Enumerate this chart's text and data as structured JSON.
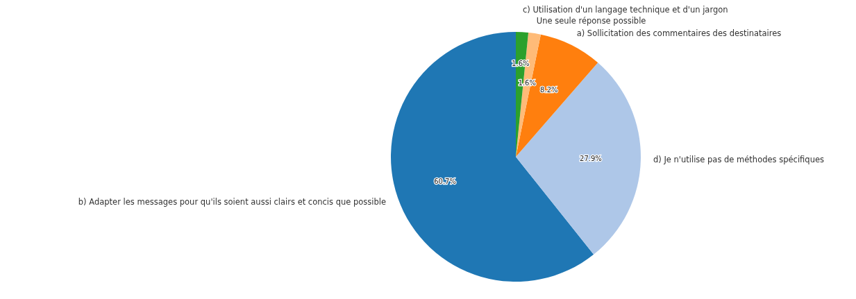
{
  "chart_data": {
    "type": "pie",
    "categories": [
      "b) Adapter les messages pour qu'ils soient aussi clairs et concis que possible",
      "d) Je n'utilise pas de méthodes spécifiques",
      "a) Sollicitation des commentaires des destinataires",
      "Une seule réponse possible",
      "c) Utilisation d'un langage technique et d'un jargon"
    ],
    "values": [
      60.7,
      27.9,
      8.2,
      1.6,
      1.6
    ],
    "colors": [
      "#1f77b4",
      "#aec7e8",
      "#ff7f0e",
      "#ffbb78",
      "#2ca02c"
    ],
    "value_labels": [
      "60.7%",
      "27.9%",
      "8.2%",
      "1.6%",
      "1.6%"
    ]
  }
}
